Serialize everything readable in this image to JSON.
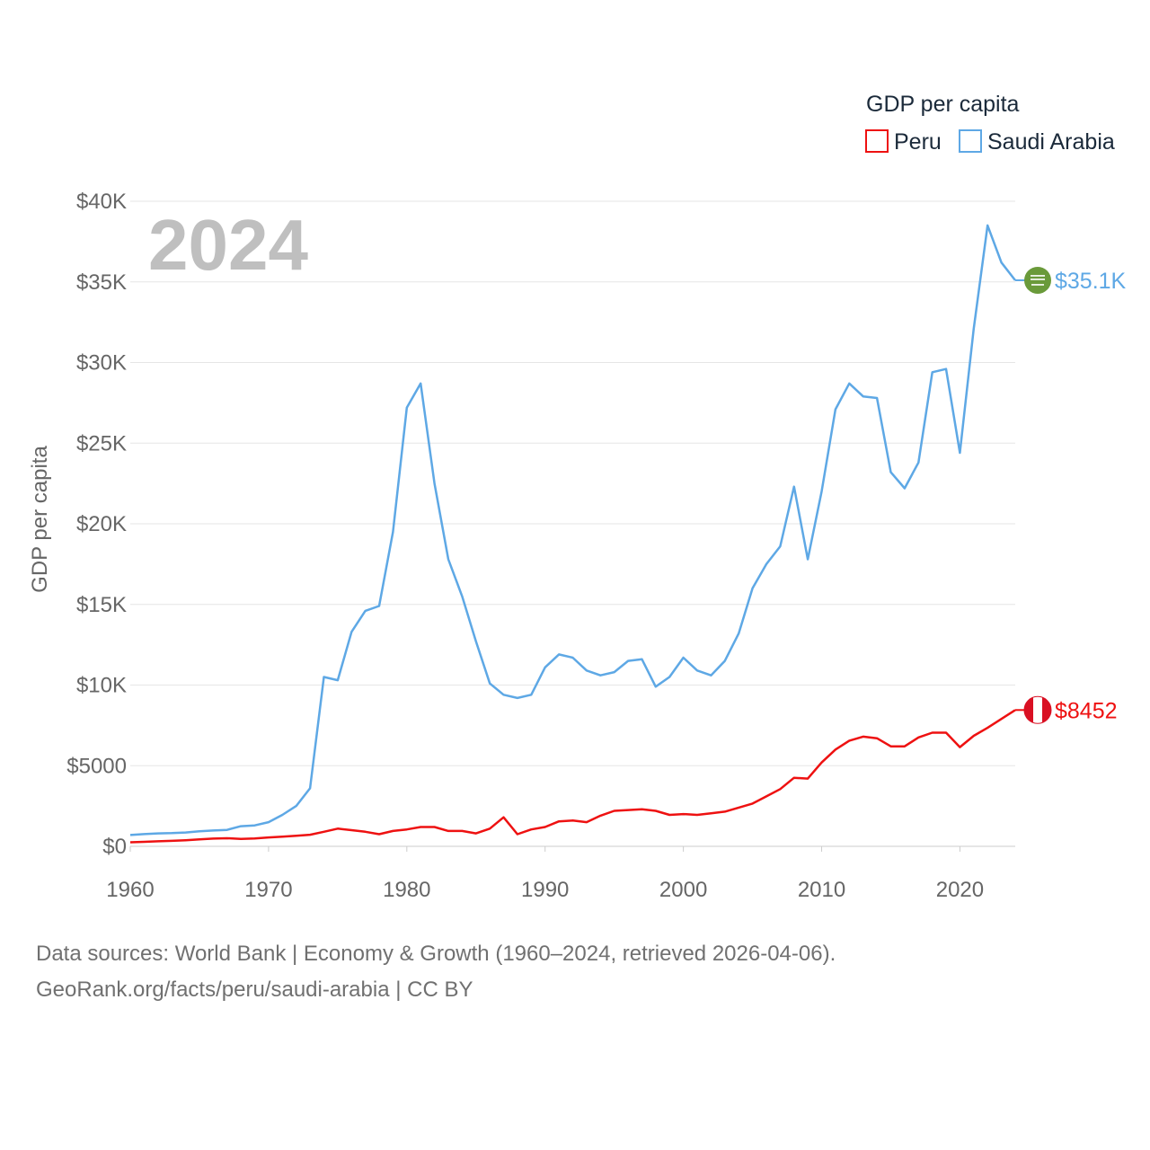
{
  "chart_data": {
    "type": "line",
    "title": "",
    "year_label": "2024",
    "ylabel": "GDP per capita",
    "xlabel": "",
    "xlim": [
      1960,
      2024
    ],
    "ylim": [
      0,
      40000
    ],
    "x_ticks": [
      1960,
      1970,
      1980,
      1990,
      2000,
      2010,
      2020
    ],
    "x_tick_labels": [
      "1960",
      "1970",
      "1980",
      "1990",
      "2000",
      "2010",
      "2020"
    ],
    "y_ticks": [
      0,
      5000,
      10000,
      15000,
      20000,
      25000,
      30000,
      35000,
      40000
    ],
    "y_tick_labels": [
      "$0",
      "$5000",
      "$10K",
      "$15K",
      "$20K",
      "$25K",
      "$30K",
      "$35K",
      "$40K"
    ],
    "grid": true,
    "legend": {
      "title": "GDP per capita",
      "placement": "top-right",
      "entries": [
        "Peru",
        "Saudi Arabia"
      ]
    },
    "x": [
      1960,
      1961,
      1962,
      1963,
      1964,
      1965,
      1966,
      1967,
      1968,
      1969,
      1970,
      1971,
      1972,
      1973,
      1974,
      1975,
      1976,
      1977,
      1978,
      1979,
      1980,
      1981,
      1982,
      1983,
      1984,
      1985,
      1986,
      1987,
      1988,
      1989,
      1990,
      1991,
      1992,
      1993,
      1994,
      1995,
      1996,
      1997,
      1998,
      1999,
      2000,
      2001,
      2002,
      2003,
      2004,
      2005,
      2006,
      2007,
      2008,
      2009,
      2010,
      2011,
      2012,
      2013,
      2014,
      2015,
      2016,
      2017,
      2018,
      2019,
      2020,
      2021,
      2022,
      2023,
      2024
    ],
    "series": [
      {
        "name": "Peru",
        "color": "#ee1111",
        "end_label": "$8452",
        "values": [
          250,
          280,
          310,
          340,
          380,
          430,
          480,
          500,
          460,
          490,
          550,
          600,
          650,
          720,
          900,
          1100,
          1000,
          900,
          750,
          950,
          1050,
          1200,
          1200,
          950,
          950,
          800,
          1100,
          1800,
          750,
          1050,
          1200,
          1550,
          1600,
          1500,
          1900,
          2200,
          2250,
          2300,
          2200,
          1950,
          2000,
          1950,
          2050,
          2150,
          2400,
          2650,
          3100,
          3550,
          4250,
          4200,
          5200,
          6000,
          6550,
          6800,
          6700,
          6200,
          6200,
          6750,
          7050,
          7050,
          6150,
          6850,
          7350,
          7900,
          8452
        ]
      },
      {
        "name": "Saudi Arabia",
        "color": "#5ea8e5",
        "end_label": "$35.1K",
        "values": [
          700,
          760,
          800,
          820,
          860,
          930,
          980,
          1020,
          1250,
          1300,
          1500,
          1950,
          2500,
          3600,
          10500,
          10300,
          13300,
          14600,
          14900,
          19500,
          27200,
          28700,
          22500,
          17800,
          15500,
          12700,
          10100,
          9400,
          9200,
          9400,
          11100,
          11900,
          11700,
          10900,
          10600,
          10800,
          11500,
          11600,
          9900,
          10500,
          11700,
          10900,
          10600,
          11500,
          13200,
          16000,
          17500,
          18600,
          22300,
          17800,
          22000,
          27100,
          28700,
          27900,
          27800,
          23200,
          22200,
          23800,
          29400,
          29600,
          24400,
          32100,
          38500,
          36200,
          35100
        ]
      }
    ]
  },
  "footer": {
    "line1": "Data sources: World Bank | Economy & Growth (1960–2024, retrieved 2026-04-06).",
    "line2": "GeoRank.org/facts/peru/saudi-arabia | CC BY"
  }
}
